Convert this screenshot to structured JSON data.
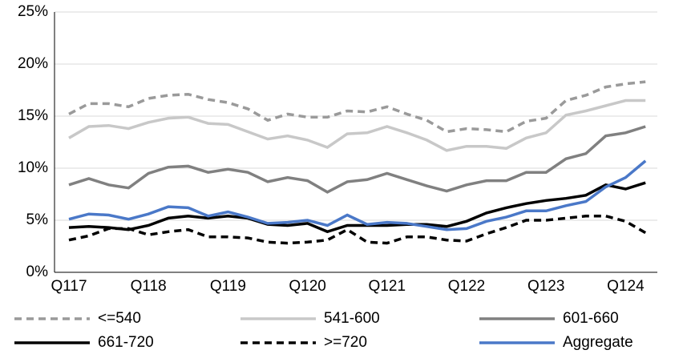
{
  "chart_data": {
    "type": "line",
    "categories": [
      "Q117",
      null,
      null,
      null,
      "Q118",
      null,
      null,
      null,
      "Q119",
      null,
      null,
      null,
      "Q120",
      null,
      null,
      null,
      "Q121",
      null,
      null,
      null,
      "Q122",
      null,
      null,
      null,
      "Q123",
      null,
      null,
      null,
      "Q124",
      null
    ],
    "series": [
      {
        "name": "<=540",
        "color": "#9a9a9a",
        "style": "dashed",
        "values": [
          15.2,
          16.2,
          16.2,
          15.9,
          16.7,
          17.0,
          17.1,
          16.6,
          16.3,
          15.7,
          14.6,
          15.2,
          14.9,
          14.9,
          15.5,
          15.4,
          15.9,
          15.2,
          14.6,
          13.5,
          13.8,
          13.7,
          13.5,
          14.5,
          14.8,
          16.5,
          17.0,
          17.8,
          18.1,
          18.3
        ]
      },
      {
        "name": "541-600",
        "color": "#c8c8c8",
        "style": "solid",
        "values": [
          12.9,
          14.0,
          14.1,
          13.8,
          14.4,
          14.8,
          14.9,
          14.3,
          14.2,
          13.5,
          12.8,
          13.1,
          12.7,
          12.0,
          13.3,
          13.4,
          14.0,
          13.4,
          12.7,
          11.7,
          12.1,
          12.1,
          11.9,
          12.9,
          13.4,
          15.1,
          15.5,
          16.0,
          16.5,
          16.5
        ]
      },
      {
        "name": "601-660",
        "color": "#808080",
        "style": "solid",
        "values": [
          8.4,
          9.0,
          8.4,
          8.1,
          9.5,
          10.1,
          10.2,
          9.6,
          9.9,
          9.6,
          8.7,
          9.1,
          8.8,
          7.7,
          8.7,
          8.9,
          9.5,
          8.9,
          8.3,
          7.8,
          8.4,
          8.8,
          8.8,
          9.6,
          9.6,
          10.9,
          11.4,
          13.1,
          13.4,
          14.0
        ]
      },
      {
        "name": "661-720",
        "color": "#000000",
        "style": "solid",
        "values": [
          4.3,
          4.4,
          4.3,
          4.1,
          4.5,
          5.2,
          5.4,
          5.2,
          5.4,
          5.2,
          4.6,
          4.5,
          4.7,
          3.9,
          4.5,
          4.5,
          4.5,
          4.6,
          4.6,
          4.4,
          4.9,
          5.7,
          6.2,
          6.6,
          6.9,
          7.1,
          7.4,
          8.4,
          8.0,
          8.6
        ]
      },
      {
        "name": ">=720",
        "color": "#000000",
        "style": "dashed",
        "values": [
          3.1,
          3.5,
          4.2,
          4.2,
          3.6,
          3.9,
          4.1,
          3.4,
          3.4,
          3.3,
          2.9,
          2.8,
          2.9,
          3.1,
          4.1,
          2.9,
          2.8,
          3.4,
          3.4,
          3.1,
          3.0,
          3.7,
          4.3,
          5.0,
          5.0,
          5.2,
          5.4,
          5.4,
          4.9,
          3.8
        ]
      },
      {
        "name": "Aggregate",
        "color": "#4a78c8",
        "style": "solid",
        "values": [
          5.1,
          5.6,
          5.5,
          5.1,
          5.6,
          6.3,
          6.2,
          5.4,
          5.8,
          5.3,
          4.7,
          4.8,
          5.0,
          4.5,
          5.5,
          4.6,
          4.8,
          4.7,
          4.4,
          4.1,
          4.2,
          4.9,
          5.3,
          5.9,
          5.9,
          6.4,
          6.8,
          8.2,
          9.1,
          10.7
        ]
      }
    ],
    "ylim": [
      0,
      25
    ],
    "yticks": [
      {
        "value": 0,
        "label": "0%"
      },
      {
        "value": 5,
        "label": "5%"
      },
      {
        "value": 10,
        "label": "10%"
      },
      {
        "value": 15,
        "label": "15%"
      },
      {
        "value": 20,
        "label": "20%"
      },
      {
        "value": 25,
        "label": "25%"
      }
    ],
    "grid": true
  }
}
